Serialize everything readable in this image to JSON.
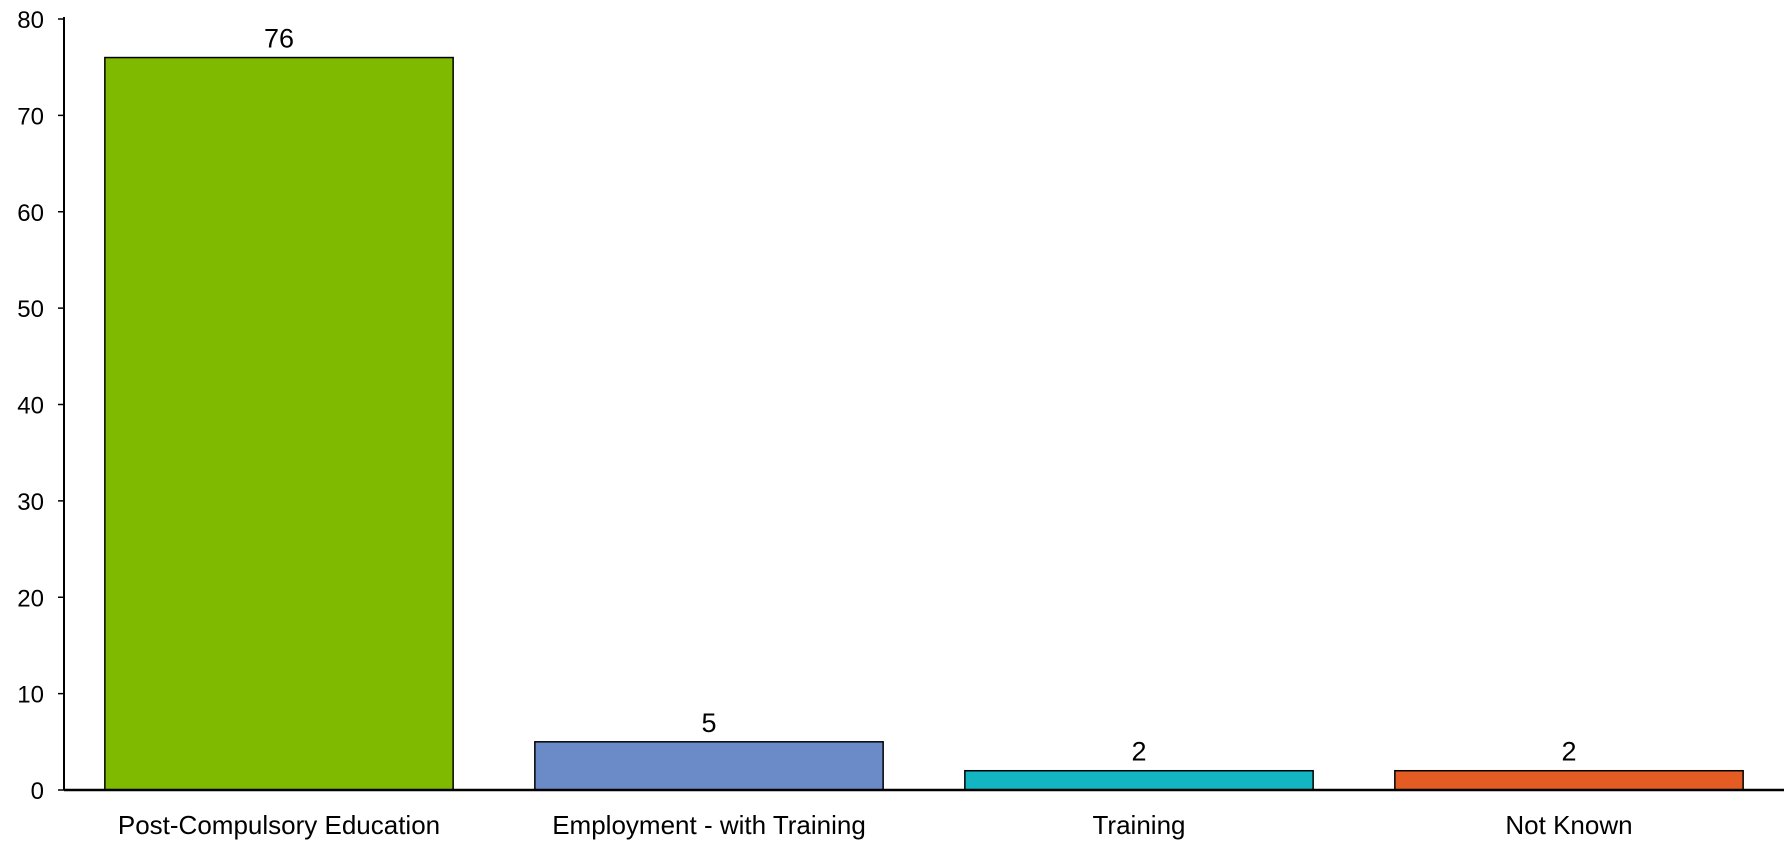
{
  "chart_data": {
    "type": "bar",
    "title": "",
    "xlabel": "",
    "ylabel": "",
    "categories": [
      "Post-Compulsory Education",
      "Employment - with Training",
      "Training",
      "Not Known"
    ],
    "values": [
      76,
      5,
      2,
      2
    ],
    "data_labels": [
      "76",
      "5",
      "2",
      "2"
    ],
    "colors": [
      "#7FBA00",
      "#6A8AC8",
      "#12B5C1",
      "#E45C23"
    ],
    "ylim": [
      0,
      80
    ],
    "yticks": [
      0,
      10,
      20,
      30,
      40,
      50,
      60,
      70,
      80
    ],
    "grid": false,
    "legend": "none"
  }
}
